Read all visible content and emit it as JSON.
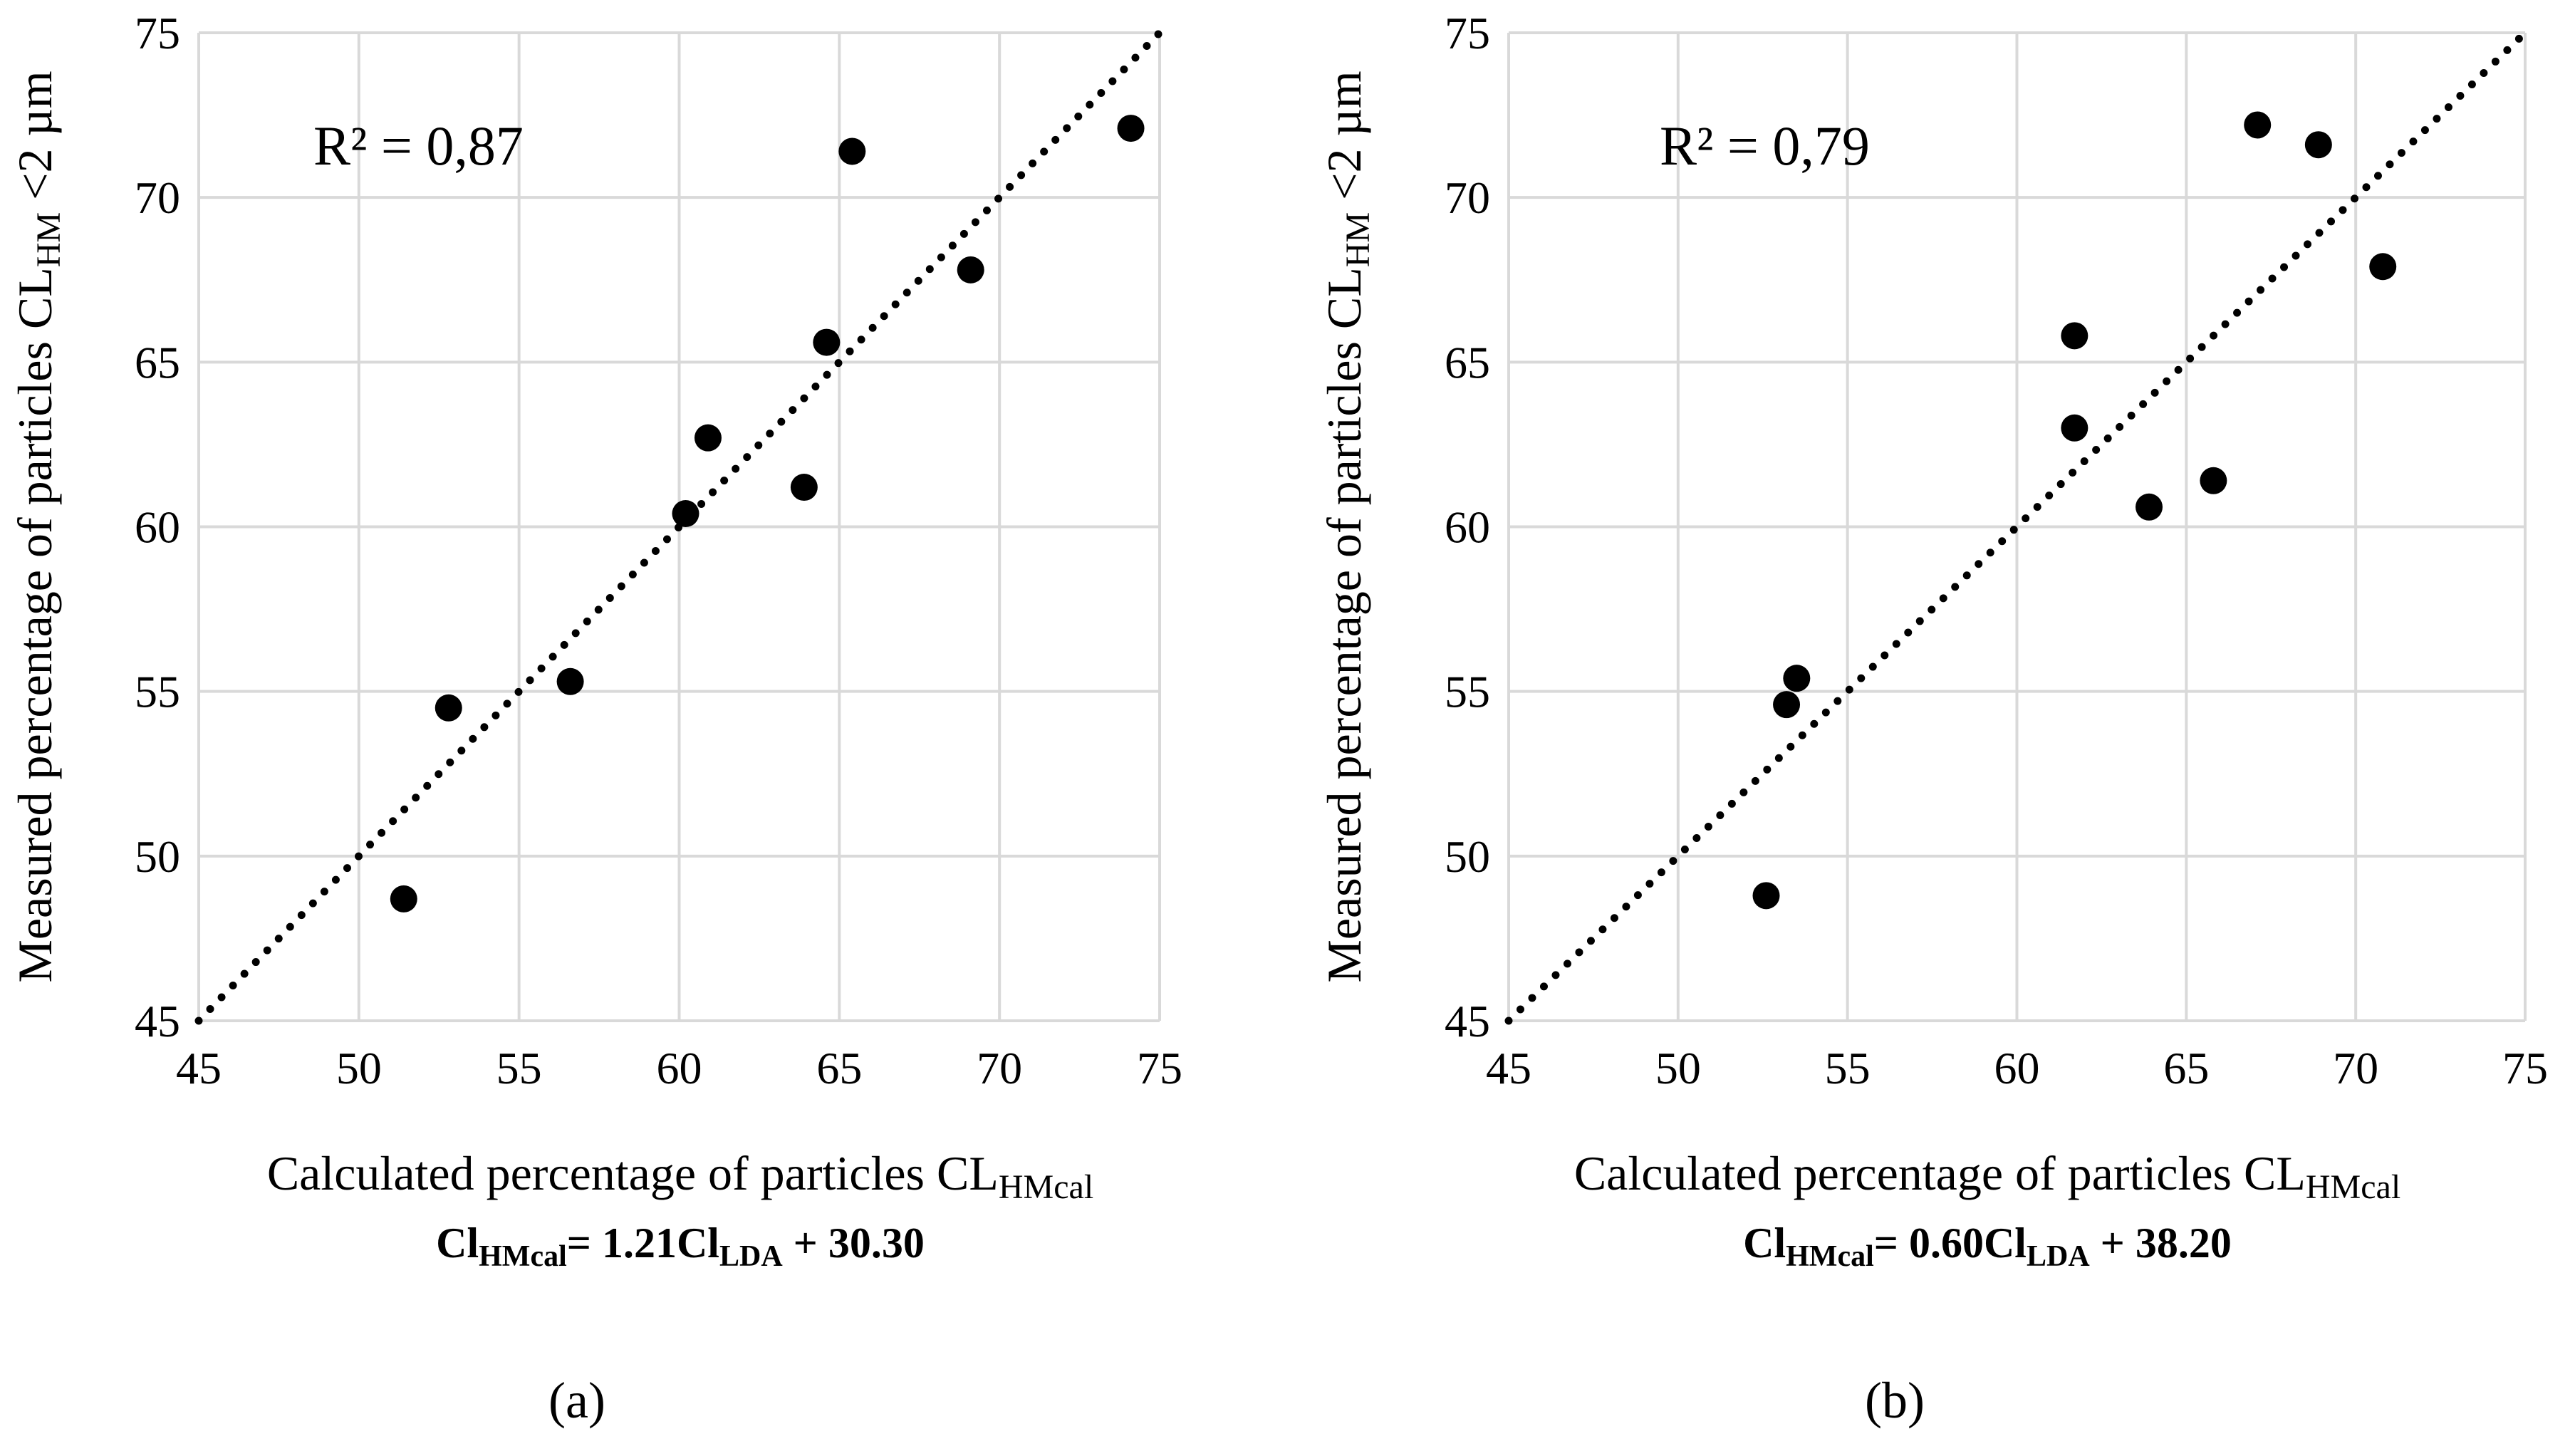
{
  "chart_data": [
    {
      "type": "scatter",
      "panel_label": "(a)",
      "r2_label": "R² = 0,87",
      "ylabel": "Measured percentage of particles CL",
      "ylabel_sub": "HM",
      "ylabel_tail": " <2 µm",
      "xlabel": "Calculated percentage of particles CL",
      "xlabel_sub": "HMcal",
      "equation": {
        "a": "Cl",
        "a_sub": "HMcal",
        "mid": "= 1.21Cl",
        "b_sub": "LDA",
        "tail": " + 30.30"
      },
      "xlim": [
        45,
        75
      ],
      "ylim": [
        45,
        75
      ],
      "xticks": [
        45,
        50,
        55,
        60,
        65,
        70,
        75
      ],
      "yticks": [
        45,
        50,
        55,
        60,
        65,
        70,
        75
      ],
      "grid": true,
      "reference_line": {
        "style": "dotted",
        "from": [
          45,
          45
        ],
        "to": [
          75,
          75
        ]
      },
      "points": [
        [
          51.4,
          48.7
        ],
        [
          52.8,
          54.5
        ],
        [
          56.6,
          55.3
        ],
        [
          60.2,
          60.4
        ],
        [
          60.9,
          62.7
        ],
        [
          63.9,
          61.2
        ],
        [
          64.6,
          65.6
        ],
        [
          65.4,
          71.4
        ],
        [
          69.1,
          67.8
        ],
        [
          74.1,
          72.1
        ]
      ]
    },
    {
      "type": "scatter",
      "panel_label": "(b)",
      "r2_label": "R² = 0,79",
      "ylabel": "Measured percentage of particles CL",
      "ylabel_sub": "HM",
      "ylabel_tail": " <2 µm",
      "xlabel": "Calculated percentage of particles CL",
      "xlabel_sub": "HMcal",
      "equation": {
        "a": "Cl",
        "a_sub": "HMcal",
        "mid": "= 0.60Cl",
        "b_sub": "LDA",
        "tail": " + 38.20"
      },
      "xlim": [
        45,
        75
      ],
      "ylim": [
        45,
        75
      ],
      "xticks": [
        45,
        50,
        55,
        60,
        65,
        70,
        75
      ],
      "yticks": [
        45,
        50,
        55,
        60,
        65,
        70,
        75
      ],
      "grid": true,
      "reference_line": {
        "style": "dotted",
        "from": [
          45,
          45
        ],
        "to": [
          75,
          75
        ]
      },
      "points": [
        [
          52.6,
          48.8
        ],
        [
          53.2,
          54.6
        ],
        [
          53.5,
          55.4
        ],
        [
          61.7,
          65.8
        ],
        [
          61.7,
          63.0
        ],
        [
          63.9,
          60.6
        ],
        [
          65.8,
          61.4
        ],
        [
          67.1,
          72.2
        ],
        [
          68.9,
          71.6
        ],
        [
          70.8,
          67.9
        ]
      ]
    }
  ]
}
